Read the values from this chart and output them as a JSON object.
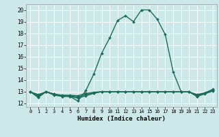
{
  "xlabel": "Humidex (Indice chaleur)",
  "xlim": [
    -0.5,
    23.5
  ],
  "ylim": [
    11.7,
    20.5
  ],
  "yticks": [
    12,
    13,
    14,
    15,
    16,
    17,
    18,
    19,
    20
  ],
  "xticks": [
    0,
    1,
    2,
    3,
    4,
    5,
    6,
    7,
    8,
    9,
    10,
    11,
    12,
    13,
    14,
    15,
    16,
    17,
    18,
    19,
    20,
    21,
    22,
    23
  ],
  "bg_color": "#cce8e8",
  "grid_color": "#b0d8d8",
  "line_color": "#1a6b5a",
  "lines": [
    [
      13.0,
      12.5,
      13.0,
      12.8,
      12.6,
      12.6,
      12.2,
      13.1,
      14.5,
      16.3,
      17.6,
      19.1,
      19.5,
      19.0,
      20.0,
      20.0,
      19.2,
      17.9,
      14.7,
      13.0,
      13.0,
      12.6,
      12.9,
      13.2
    ],
    [
      13.0,
      12.75,
      13.0,
      12.8,
      12.7,
      12.7,
      12.65,
      12.85,
      12.95,
      13.0,
      13.0,
      13.0,
      13.0,
      13.0,
      13.0,
      13.0,
      13.0,
      13.0,
      13.0,
      13.0,
      13.0,
      12.75,
      12.9,
      13.15
    ],
    [
      13.0,
      12.65,
      13.0,
      12.75,
      12.65,
      12.65,
      12.55,
      12.75,
      12.9,
      13.0,
      13.0,
      13.0,
      13.0,
      13.0,
      13.0,
      13.0,
      13.0,
      13.0,
      13.0,
      13.0,
      13.0,
      12.65,
      12.85,
      13.1
    ],
    [
      13.0,
      12.55,
      13.0,
      12.7,
      12.6,
      12.6,
      12.45,
      12.65,
      12.85,
      13.0,
      13.0,
      13.0,
      13.0,
      13.0,
      13.0,
      13.0,
      13.0,
      13.0,
      13.0,
      13.0,
      13.0,
      12.58,
      12.82,
      13.05
    ]
  ]
}
